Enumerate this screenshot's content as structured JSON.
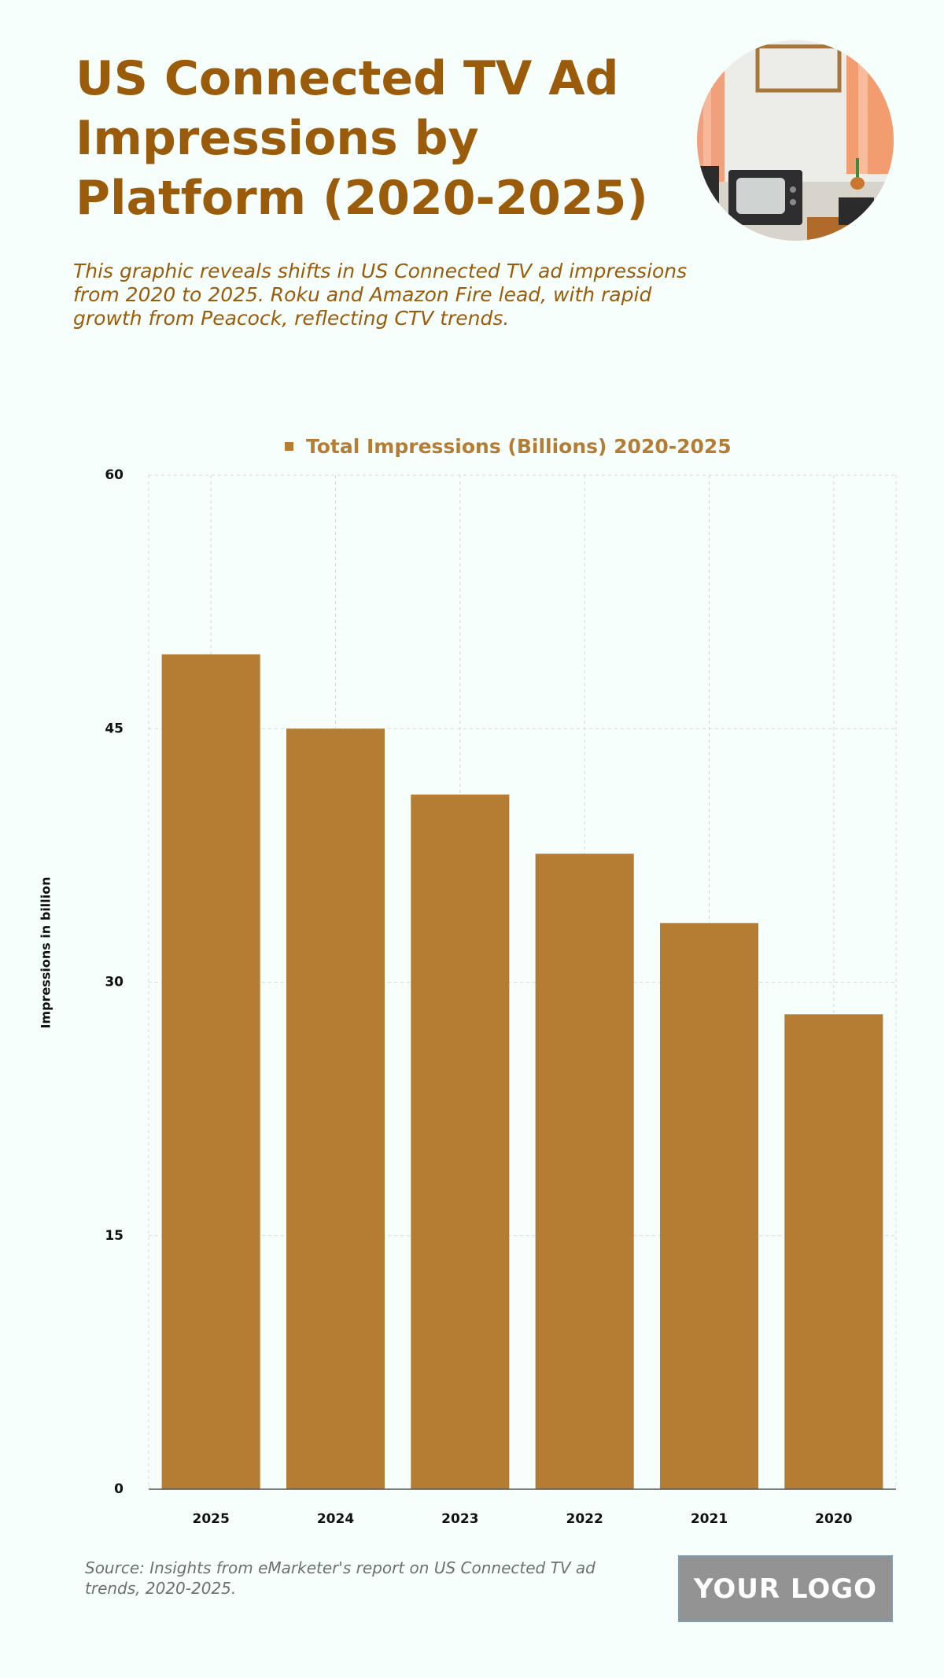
{
  "header": {
    "title": "US Connected TV Ad Impressions by Platform (2020-2025)",
    "subtitle": "This graphic reveals shifts in US Connected TV ad impressions from 2020 to 2025. Roku and Amazon Fire lead, with rapid growth from Peacock, reflecting CTV trends."
  },
  "photo": {
    "icon": "retro-tv-room-photo"
  },
  "chart_data": {
    "type": "bar",
    "categories": [
      "2025",
      "2024",
      "2023",
      "2022",
      "2021",
      "2020"
    ],
    "series": [
      {
        "name": "Total Impressions (Billions) 2020-2025",
        "values": [
          49.4,
          45.0,
          41.1,
          37.6,
          33.5,
          28.1
        ]
      }
    ],
    "ylabel": "Impressions in billion",
    "xlabel": "",
    "ylim": [
      0,
      60
    ],
    "yticks": [
      "0",
      "15",
      "30",
      "45",
      "60"
    ],
    "grid": true,
    "legend_position": "top",
    "bar_color": "#b57c33"
  },
  "footer": {
    "source": "Source: Insights from eMarketer's report on US Connected TV ad trends, 2020-2025.",
    "logo": "YOUR LOGO"
  },
  "colors": {
    "title": "#9a5c0a",
    "bar": "#b57c33",
    "background": "#f7fffd"
  }
}
